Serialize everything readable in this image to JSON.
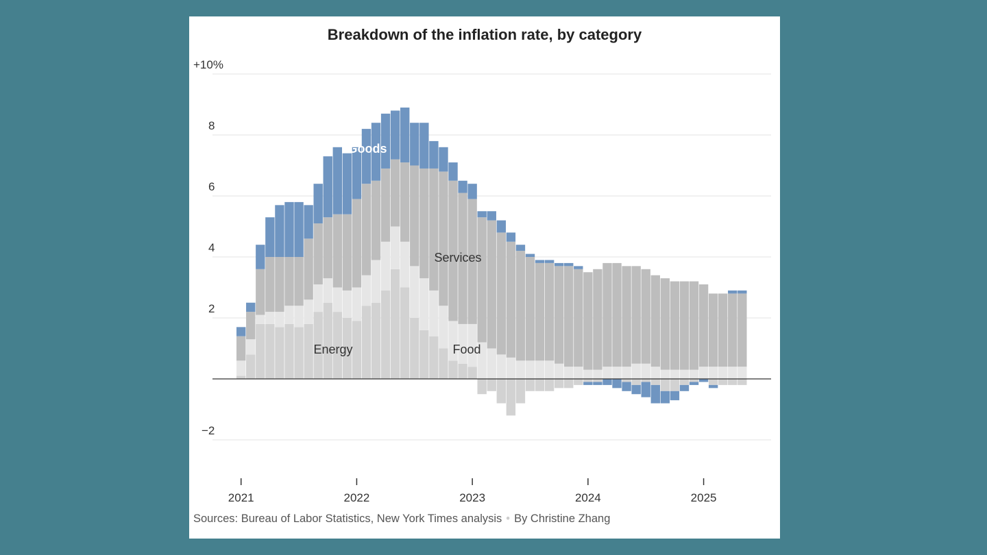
{
  "page": {
    "title": "Breakdown of the inflation rate, by category"
  },
  "footer": {
    "sources": "Sources: Bureau of Labor Statistics, New York Times analysis",
    "separator": "•",
    "byline": "By Christine Zhang"
  },
  "colors": {
    "background": "#45808e",
    "goods": "#6f95c1",
    "services": "#bdbdbd",
    "food": "#e6e6e6",
    "energy": "#d2d2d2",
    "axis": "#333333",
    "grid": "#e3e3e3"
  },
  "chart_data": {
    "type": "bar",
    "stacked": true,
    "title": "Breakdown of the inflation rate, by category",
    "ylim": [
      -3.2,
      10
    ],
    "yticks": [
      -2,
      2,
      4,
      6,
      8,
      10
    ],
    "ytick_labels": [
      "−2",
      "2",
      "4",
      "6",
      "8",
      "+10%"
    ],
    "xtick_labels": [
      "2021",
      "2022",
      "2023",
      "2024",
      "2025"
    ],
    "grid": true,
    "annotation_labels": {
      "goods": "Goods",
      "services": "Services",
      "energy": "Energy",
      "food": "Food"
    },
    "categories": [
      "2021-01",
      "2021-02",
      "2021-03",
      "2021-04",
      "2021-05",
      "2021-06",
      "2021-07",
      "2021-08",
      "2021-09",
      "2021-10",
      "2021-11",
      "2021-12",
      "2022-01",
      "2022-02",
      "2022-03",
      "2022-04",
      "2022-05",
      "2022-06",
      "2022-07",
      "2022-08",
      "2022-09",
      "2022-10",
      "2022-11",
      "2022-12",
      "2023-01",
      "2023-02",
      "2023-03",
      "2023-04",
      "2023-05",
      "2023-06",
      "2023-07",
      "2023-08",
      "2023-09",
      "2023-10",
      "2023-11",
      "2023-12",
      "2024-01",
      "2024-02",
      "2024-03",
      "2024-04",
      "2024-05",
      "2024-06",
      "2024-07",
      "2024-08",
      "2024-09",
      "2024-10",
      "2024-11",
      "2024-12",
      "2025-01",
      "2025-02",
      "2025-03",
      "2025-04",
      "2025-05"
    ],
    "series": [
      {
        "name": "Energy",
        "values": [
          0.1,
          0.8,
          1.8,
          1.8,
          1.7,
          1.8,
          1.7,
          1.8,
          2.2,
          2.5,
          2.2,
          2.0,
          1.9,
          2.4,
          2.5,
          2.9,
          3.6,
          3.0,
          2.0,
          1.6,
          1.4,
          1.0,
          0.6,
          0.5,
          0.4,
          -0.5,
          -0.4,
          -0.8,
          -1.2,
          -0.8,
          -0.4,
          -0.4,
          -0.4,
          -0.3,
          -0.3,
          -0.2,
          -0.1,
          -0.1,
          0.0,
          0.0,
          -0.1,
          -0.2,
          -0.1,
          -0.2,
          -0.4,
          -0.4,
          -0.2,
          -0.1,
          0.0,
          -0.2,
          -0.2,
          -0.2,
          -0.2
        ]
      },
      {
        "name": "Food",
        "values": [
          0.5,
          0.5,
          0.3,
          0.4,
          0.5,
          0.6,
          0.7,
          0.8,
          0.9,
          0.8,
          0.8,
          0.9,
          1.1,
          1.0,
          1.4,
          1.6,
          1.4,
          1.5,
          1.7,
          1.7,
          1.5,
          1.4,
          1.3,
          1.3,
          1.4,
          1.2,
          1.0,
          0.8,
          0.7,
          0.6,
          0.6,
          0.6,
          0.6,
          0.5,
          0.4,
          0.4,
          0.3,
          0.3,
          0.4,
          0.4,
          0.4,
          0.5,
          0.5,
          0.4,
          0.3,
          0.3,
          0.3,
          0.3,
          0.4,
          0.4,
          0.4,
          0.4,
          0.4
        ]
      },
      {
        "name": "Services",
        "values": [
          0.8,
          0.9,
          1.5,
          1.8,
          1.8,
          1.6,
          1.6,
          2.0,
          2.0,
          2.0,
          2.4,
          2.5,
          2.9,
          3.0,
          2.6,
          2.4,
          2.2,
          2.6,
          3.3,
          3.6,
          4.0,
          4.4,
          4.6,
          4.3,
          4.1,
          4.1,
          4.2,
          4.0,
          3.8,
          3.6,
          3.4,
          3.2,
          3.2,
          3.2,
          3.3,
          3.2,
          3.2,
          3.3,
          3.4,
          3.4,
          3.3,
          3.2,
          3.1,
          3.0,
          3.0,
          2.9,
          2.9,
          2.9,
          2.7,
          2.4,
          2.4,
          2.4,
          2.4
        ]
      },
      {
        "name": "Goods",
        "values": [
          0.3,
          0.3,
          0.8,
          1.3,
          1.7,
          1.8,
          1.8,
          1.1,
          1.3,
          2.0,
          2.2,
          2.0,
          1.7,
          1.8,
          1.9,
          1.8,
          1.6,
          1.8,
          1.4,
          1.5,
          0.9,
          0.8,
          0.6,
          0.4,
          0.5,
          0.2,
          0.3,
          0.4,
          0.3,
          0.2,
          0.1,
          0.1,
          0.1,
          0.1,
          0.1,
          0.1,
          -0.1,
          -0.1,
          -0.2,
          -0.3,
          -0.3,
          -0.3,
          -0.5,
          -0.6,
          -0.4,
          -0.3,
          -0.2,
          -0.1,
          -0.1,
          -0.1,
          0.0,
          0.1,
          0.1
        ]
      }
    ]
  }
}
